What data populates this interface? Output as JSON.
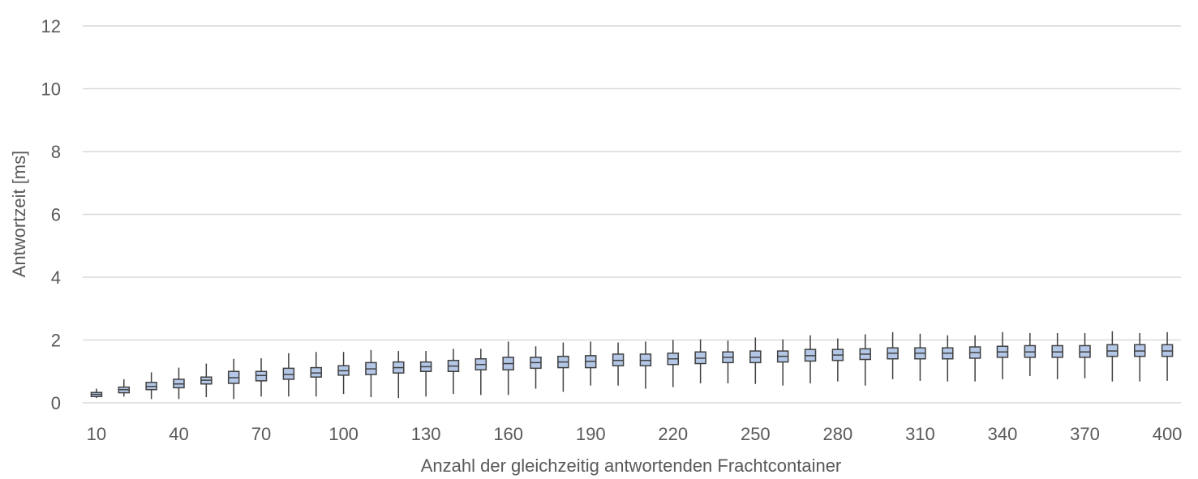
{
  "colors": {
    "box_fill": "#b4c7e7",
    "box_stroke": "#404040",
    "grid": "#d9d9d9",
    "text": "#595959"
  },
  "chart_data": {
    "type": "boxplot",
    "xlabel": "Anzahl der gleichzeitig  antwortenden Frachtcontainer",
    "ylabel": "Antwortzeit [ms]",
    "ylim": [
      0,
      12
    ],
    "yticks": [
      "0",
      "2",
      "4",
      "6",
      "8",
      "10",
      "12"
    ],
    "xticks": [
      "10",
      "40",
      "70",
      "100",
      "130",
      "160",
      "190",
      "220",
      "250",
      "280",
      "310",
      "340",
      "370",
      "400"
    ],
    "grid": "horizontal",
    "categories": [
      10,
      20,
      30,
      40,
      50,
      60,
      70,
      80,
      90,
      100,
      110,
      120,
      130,
      140,
      150,
      160,
      170,
      180,
      190,
      200,
      210,
      220,
      230,
      240,
      250,
      260,
      270,
      280,
      290,
      300,
      310,
      320,
      330,
      340,
      350,
      360,
      370,
      380,
      390,
      400
    ],
    "boxes": [
      {
        "min": 0.15,
        "q1": 0.2,
        "median": 0.27,
        "q3": 0.33,
        "max": 0.45
      },
      {
        "min": 0.2,
        "q1": 0.32,
        "median": 0.42,
        "q3": 0.5,
        "max": 0.75
      },
      {
        "min": 0.12,
        "q1": 0.42,
        "median": 0.52,
        "q3": 0.65,
        "max": 0.97
      },
      {
        "min": 0.12,
        "q1": 0.48,
        "median": 0.6,
        "q3": 0.75,
        "max": 1.12
      },
      {
        "min": 0.18,
        "q1": 0.6,
        "median": 0.72,
        "q3": 0.82,
        "max": 1.25
      },
      {
        "min": 0.12,
        "q1": 0.62,
        "median": 0.8,
        "q3": 1.0,
        "max": 1.4
      },
      {
        "min": 0.2,
        "q1": 0.7,
        "median": 0.87,
        "q3": 1.0,
        "max": 1.42
      },
      {
        "min": 0.2,
        "q1": 0.75,
        "median": 0.9,
        "q3": 1.1,
        "max": 1.58
      },
      {
        "min": 0.2,
        "q1": 0.82,
        "median": 0.95,
        "q3": 1.12,
        "max": 1.62
      },
      {
        "min": 0.28,
        "q1": 0.88,
        "median": 1.02,
        "q3": 1.18,
        "max": 1.62
      },
      {
        "min": 0.18,
        "q1": 0.9,
        "median": 1.08,
        "q3": 1.28,
        "max": 1.68
      },
      {
        "min": 0.15,
        "q1": 0.95,
        "median": 1.12,
        "q3": 1.3,
        "max": 1.65
      },
      {
        "min": 0.2,
        "q1": 1.0,
        "median": 1.15,
        "q3": 1.3,
        "max": 1.65
      },
      {
        "min": 0.28,
        "q1": 1.0,
        "median": 1.17,
        "q3": 1.35,
        "max": 1.72
      },
      {
        "min": 0.25,
        "q1": 1.05,
        "median": 1.22,
        "q3": 1.4,
        "max": 1.72
      },
      {
        "min": 0.25,
        "q1": 1.05,
        "median": 1.25,
        "q3": 1.45,
        "max": 1.95
      },
      {
        "min": 0.45,
        "q1": 1.1,
        "median": 1.28,
        "q3": 1.45,
        "max": 1.8
      },
      {
        "min": 0.35,
        "q1": 1.12,
        "median": 1.3,
        "q3": 1.48,
        "max": 1.92
      },
      {
        "min": 0.55,
        "q1": 1.12,
        "median": 1.32,
        "q3": 1.5,
        "max": 1.95
      },
      {
        "min": 0.55,
        "q1": 1.18,
        "median": 1.35,
        "q3": 1.55,
        "max": 1.92
      },
      {
        "min": 0.45,
        "q1": 1.18,
        "median": 1.35,
        "q3": 1.55,
        "max": 1.95
      },
      {
        "min": 0.5,
        "q1": 1.22,
        "median": 1.4,
        "q3": 1.58,
        "max": 2.0
      },
      {
        "min": 0.62,
        "q1": 1.25,
        "median": 1.42,
        "q3": 1.62,
        "max": 2.02
      },
      {
        "min": 0.62,
        "q1": 1.28,
        "median": 1.45,
        "q3": 1.62,
        "max": 1.98
      },
      {
        "min": 0.6,
        "q1": 1.28,
        "median": 1.45,
        "q3": 1.65,
        "max": 2.08
      },
      {
        "min": 0.55,
        "q1": 1.3,
        "median": 1.48,
        "q3": 1.65,
        "max": 2.02
      },
      {
        "min": 0.62,
        "q1": 1.33,
        "median": 1.5,
        "q3": 1.7,
        "max": 2.15
      },
      {
        "min": 0.68,
        "q1": 1.35,
        "median": 1.52,
        "q3": 1.7,
        "max": 2.05
      },
      {
        "min": 0.55,
        "q1": 1.38,
        "median": 1.55,
        "q3": 1.72,
        "max": 2.18
      },
      {
        "min": 0.75,
        "q1": 1.4,
        "median": 1.58,
        "q3": 1.75,
        "max": 2.25
      },
      {
        "min": 0.7,
        "q1": 1.4,
        "median": 1.58,
        "q3": 1.75,
        "max": 2.2
      },
      {
        "min": 0.68,
        "q1": 1.4,
        "median": 1.58,
        "q3": 1.75,
        "max": 2.15
      },
      {
        "min": 0.68,
        "q1": 1.42,
        "median": 1.6,
        "q3": 1.78,
        "max": 2.15
      },
      {
        "min": 0.75,
        "q1": 1.45,
        "median": 1.62,
        "q3": 1.8,
        "max": 2.25
      },
      {
        "min": 0.85,
        "q1": 1.45,
        "median": 1.62,
        "q3": 1.82,
        "max": 2.22
      },
      {
        "min": 0.75,
        "q1": 1.45,
        "median": 1.62,
        "q3": 1.82,
        "max": 2.22
      },
      {
        "min": 0.78,
        "q1": 1.45,
        "median": 1.62,
        "q3": 1.82,
        "max": 2.22
      },
      {
        "min": 0.68,
        "q1": 1.48,
        "median": 1.65,
        "q3": 1.85,
        "max": 2.28
      },
      {
        "min": 0.68,
        "q1": 1.48,
        "median": 1.65,
        "q3": 1.85,
        "max": 2.22
      },
      {
        "min": 0.7,
        "q1": 1.48,
        "median": 1.65,
        "q3": 1.85,
        "max": 2.25
      }
    ]
  }
}
